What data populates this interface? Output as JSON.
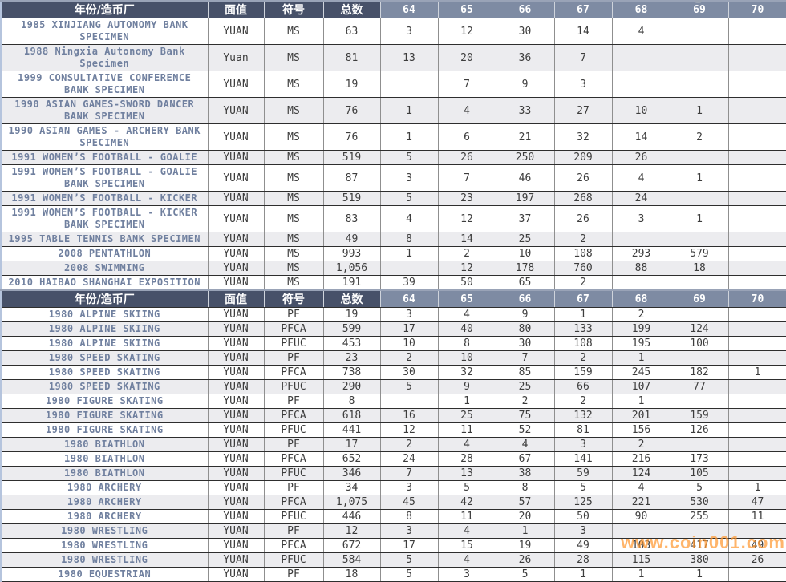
{
  "watermark": "www.coin001.com",
  "colors": {
    "header_dark": "#475169",
    "header_grade": "#7e8ba3",
    "row_alt": "#ececef",
    "name_text": "#70809f",
    "edge_blue": "#b5c4dd",
    "watermark": "#ff9933"
  },
  "header": {
    "name_col": "年份/造币厂",
    "denom_col": "面值",
    "symbol_col": "符号",
    "total_col": "总数",
    "grade_cols": [
      "64",
      "65",
      "66",
      "67",
      "68",
      "69",
      "70"
    ]
  },
  "sections": [
    {
      "rows": [
        {
          "name": "1985 XINJIANG AUTONOMY BANK SPECIMEN",
          "denom": "YUAN",
          "symbol": "MS",
          "total": "63",
          "grades": [
            "3",
            "12",
            "30",
            "14",
            "4",
            "",
            ""
          ]
        },
        {
          "name": "1988 Ningxia Autonomy Bank Specimen",
          "denom": "Yuan",
          "symbol": "MS",
          "total": "81",
          "grades": [
            "13",
            "20",
            "36",
            "7",
            "",
            "",
            ""
          ]
        },
        {
          "name": "1999 CONSULTATIVE CONFERENCE BANK SPECIMEN",
          "denom": "YUAN",
          "symbol": "MS",
          "total": "19",
          "grades": [
            "",
            "7",
            "9",
            "3",
            "",
            "",
            ""
          ]
        },
        {
          "name": "1990 ASIAN GAMES-SWORD DANCER BANK SPECIMEN",
          "denom": "YUAN",
          "symbol": "MS",
          "total": "76",
          "grades": [
            "1",
            "4",
            "33",
            "27",
            "10",
            "1",
            ""
          ]
        },
        {
          "name": "1990 ASIAN GAMES - ARCHERY BANK SPECIMEN",
          "denom": "YUAN",
          "symbol": "MS",
          "total": "76",
          "grades": [
            "1",
            "6",
            "21",
            "32",
            "14",
            "2",
            ""
          ]
        },
        {
          "name": "1991 WOMEN’S FOOTBALL - GOALIE",
          "denom": "YUAN",
          "symbol": "MS",
          "total": "519",
          "grades": [
            "5",
            "26",
            "250",
            "209",
            "26",
            "",
            ""
          ]
        },
        {
          "name": "1991 WOMEN’S FOOTBALL - GOALIE BANK SPECIMEN",
          "denom": "YUAN",
          "symbol": "MS",
          "total": "87",
          "grades": [
            "3",
            "7",
            "46",
            "26",
            "4",
            "1",
            ""
          ]
        },
        {
          "name": "1991 WOMEN’S FOOTBALL - KICKER",
          "denom": "YUAN",
          "symbol": "MS",
          "total": "519",
          "grades": [
            "5",
            "23",
            "197",
            "268",
            "24",
            "",
            ""
          ]
        },
        {
          "name": "1991 WOMEN’S FOOTBALL - KICKER BANK SPECIMEN",
          "denom": "YUAN",
          "symbol": "MS",
          "total": "83",
          "grades": [
            "4",
            "12",
            "37",
            "26",
            "3",
            "1",
            ""
          ]
        },
        {
          "name": "1995 TABLE TENNIS BANK SPECIMEN",
          "denom": "YUAN",
          "symbol": "MS",
          "total": "49",
          "grades": [
            "8",
            "14",
            "25",
            "2",
            "",
            "",
            ""
          ]
        },
        {
          "name": "2008 PENTATHLON",
          "denom": "YUAN",
          "symbol": "MS",
          "total": "993",
          "grades": [
            "1",
            "2",
            "10",
            "108",
            "293",
            "579",
            ""
          ]
        },
        {
          "name": "2008 SWIMMING",
          "denom": "YUAN",
          "symbol": "MS",
          "total": "1,056",
          "grades": [
            "",
            "12",
            "178",
            "760",
            "88",
            "18",
            ""
          ]
        },
        {
          "name": "2010 HAIBAO SHANGHAI EXPOSITION",
          "denom": "YUAN",
          "symbol": "MS",
          "total": "191",
          "grades": [
            "39",
            "50",
            "65",
            "2",
            "",
            "",
            ""
          ]
        }
      ]
    },
    {
      "rows": [
        {
          "name": "1980 ALPINE SKIING",
          "denom": "YUAN",
          "symbol": "PF",
          "total": "19",
          "grades": [
            "3",
            "4",
            "9",
            "1",
            "2",
            "",
            ""
          ]
        },
        {
          "name": "1980 ALPINE SKIING",
          "denom": "YUAN",
          "symbol": "PFCA",
          "total": "599",
          "grades": [
            "17",
            "40",
            "80",
            "133",
            "199",
            "124",
            ""
          ]
        },
        {
          "name": "1980 ALPINE SKIING",
          "denom": "YUAN",
          "symbol": "PFUC",
          "total": "453",
          "grades": [
            "10",
            "8",
            "30",
            "108",
            "195",
            "100",
            ""
          ]
        },
        {
          "name": "1980 SPEED SKATING",
          "denom": "YUAN",
          "symbol": "PF",
          "total": "23",
          "grades": [
            "2",
            "10",
            "7",
            "2",
            "1",
            "",
            ""
          ]
        },
        {
          "name": "1980 SPEED SKATING",
          "denom": "YUAN",
          "symbol": "PFCA",
          "total": "738",
          "grades": [
            "30",
            "32",
            "85",
            "159",
            "245",
            "182",
            "1"
          ]
        },
        {
          "name": "1980 SPEED SKATING",
          "denom": "YUAN",
          "symbol": "PFUC",
          "total": "290",
          "grades": [
            "5",
            "9",
            "25",
            "66",
            "107",
            "77",
            ""
          ]
        },
        {
          "name": "1980 FIGURE SKATING",
          "denom": "YUAN",
          "symbol": "PF",
          "total": "8",
          "grades": [
            "",
            "1",
            "2",
            "2",
            "1",
            "",
            ""
          ]
        },
        {
          "name": "1980 FIGURE SKATING",
          "denom": "YUAN",
          "symbol": "PFCA",
          "total": "618",
          "grades": [
            "16",
            "25",
            "75",
            "132",
            "201",
            "159",
            ""
          ]
        },
        {
          "name": "1980 FIGURE SKATING",
          "denom": "YUAN",
          "symbol": "PFUC",
          "total": "441",
          "grades": [
            "12",
            "11",
            "52",
            "81",
            "156",
            "126",
            ""
          ]
        },
        {
          "name": "1980 BIATHLON",
          "denom": "YUAN",
          "symbol": "PF",
          "total": "17",
          "grades": [
            "2",
            "4",
            "4",
            "3",
            "2",
            "",
            ""
          ]
        },
        {
          "name": "1980 BIATHLON",
          "denom": "YUAN",
          "symbol": "PFCA",
          "total": "652",
          "grades": [
            "24",
            "28",
            "67",
            "141",
            "216",
            "173",
            ""
          ]
        },
        {
          "name": "1980 BIATHLON",
          "denom": "YUAN",
          "symbol": "PFUC",
          "total": "346",
          "grades": [
            "7",
            "13",
            "38",
            "59",
            "124",
            "105",
            ""
          ]
        },
        {
          "name": "1980 ARCHERY",
          "denom": "YUAN",
          "symbol": "PF",
          "total": "34",
          "grades": [
            "3",
            "5",
            "8",
            "5",
            "4",
            "5",
            "1"
          ]
        },
        {
          "name": "1980 ARCHERY",
          "denom": "YUAN",
          "symbol": "PFCA",
          "total": "1,075",
          "grades": [
            "45",
            "42",
            "57",
            "125",
            "221",
            "530",
            "47"
          ]
        },
        {
          "name": "1980 ARCHERY",
          "denom": "YUAN",
          "symbol": "PFUC",
          "total": "446",
          "grades": [
            "8",
            "11",
            "20",
            "50",
            "90",
            "255",
            "11"
          ]
        },
        {
          "name": "1980 WRESTLING",
          "denom": "YUAN",
          "symbol": "PF",
          "total": "12",
          "grades": [
            "3",
            "4",
            "1",
            "3",
            "",
            "",
            ""
          ]
        },
        {
          "name": "1980 WRESTLING",
          "denom": "YUAN",
          "symbol": "PFCA",
          "total": "672",
          "grades": [
            "17",
            "15",
            "19",
            "49",
            "103",
            "417",
            "49"
          ]
        },
        {
          "name": "1980 WRESTLING",
          "denom": "YUAN",
          "symbol": "PFUC",
          "total": "584",
          "grades": [
            "5",
            "4",
            "26",
            "28",
            "115",
            "380",
            "26"
          ]
        },
        {
          "name": "1980 EQUESTRIAN",
          "denom": "YUAN",
          "symbol": "PF",
          "total": "18",
          "grades": [
            "5",
            "3",
            "5",
            "1",
            "1",
            "1",
            ""
          ]
        }
      ]
    }
  ]
}
